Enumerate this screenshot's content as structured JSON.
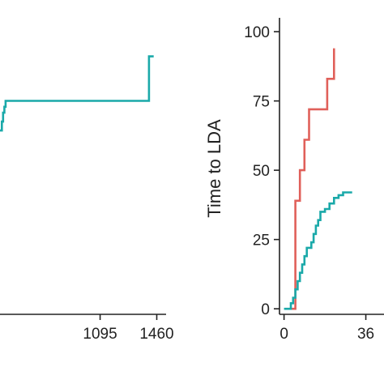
{
  "colors": {
    "teal": "#1aa9a9",
    "red": "#e0605a",
    "axis": "#222222"
  },
  "chart_data": [
    {
      "type": "line",
      "step": true,
      "x_ticks": [
        "1095",
        "1460"
      ],
      "x_tick_values": [
        1095,
        1460
      ],
      "xlim": [
        450,
        1520
      ],
      "ylim": [
        0,
        100
      ],
      "series": [
        {
          "color": "#1aa9a9",
          "points": [
            [
              450,
              62
            ],
            [
              462,
              62
            ],
            [
              462,
              65
            ],
            [
              470,
              65
            ],
            [
              470,
              68
            ],
            [
              478,
              68
            ],
            [
              478,
              70
            ],
            [
              486,
              70
            ],
            [
              486,
              72
            ],
            [
              1410,
              72
            ],
            [
              1410,
              87
            ],
            [
              1440,
              87
            ]
          ]
        }
      ]
    },
    {
      "type": "line",
      "step": true,
      "ylabel": "Time to LDA",
      "y_ticks": [
        "0",
        "25",
        "50",
        "75",
        "100"
      ],
      "y_tick_values": [
        0,
        25,
        50,
        75,
        100
      ],
      "x_ticks": [
        "0",
        "36"
      ],
      "x_tick_values": [
        0,
        36
      ],
      "xlim": [
        -2,
        44
      ],
      "ylim": [
        -2,
        105
      ],
      "series": [
        {
          "color": "#e0605a",
          "points": [
            [
              3,
              0
            ],
            [
              5,
              0
            ],
            [
              5,
              39
            ],
            [
              7,
              39
            ],
            [
              7,
              50
            ],
            [
              9,
              50
            ],
            [
              9,
              61
            ],
            [
              11,
              61
            ],
            [
              11,
              72
            ],
            [
              19,
              72
            ],
            [
              19,
              83
            ],
            [
              22,
              83
            ],
            [
              22,
              94
            ]
          ]
        },
        {
          "color": "#1aa9a9",
          "points": [
            [
              0,
              0
            ],
            [
              3,
              0
            ],
            [
              3,
              2
            ],
            [
              4,
              2
            ],
            [
              4,
              4
            ],
            [
              5,
              4
            ],
            [
              5,
              7
            ],
            [
              6,
              7
            ],
            [
              6,
              10
            ],
            [
              7,
              10
            ],
            [
              7,
              13
            ],
            [
              8,
              13
            ],
            [
              8,
              16
            ],
            [
              9,
              16
            ],
            [
              9,
              19
            ],
            [
              10,
              19
            ],
            [
              10,
              22
            ],
            [
              12,
              22
            ],
            [
              12,
              24
            ],
            [
              13,
              24
            ],
            [
              13,
              27
            ],
            [
              14,
              27
            ],
            [
              14,
              30
            ],
            [
              15,
              30
            ],
            [
              15,
              32
            ],
            [
              16,
              32
            ],
            [
              16,
              35
            ],
            [
              18,
              35
            ],
            [
              18,
              36
            ],
            [
              20,
              36
            ],
            [
              20,
              38
            ],
            [
              22,
              38
            ],
            [
              22,
              40
            ],
            [
              24,
              40
            ],
            [
              24,
              41
            ],
            [
              26,
              41
            ],
            [
              26,
              42
            ],
            [
              30,
              42
            ]
          ]
        }
      ]
    }
  ]
}
